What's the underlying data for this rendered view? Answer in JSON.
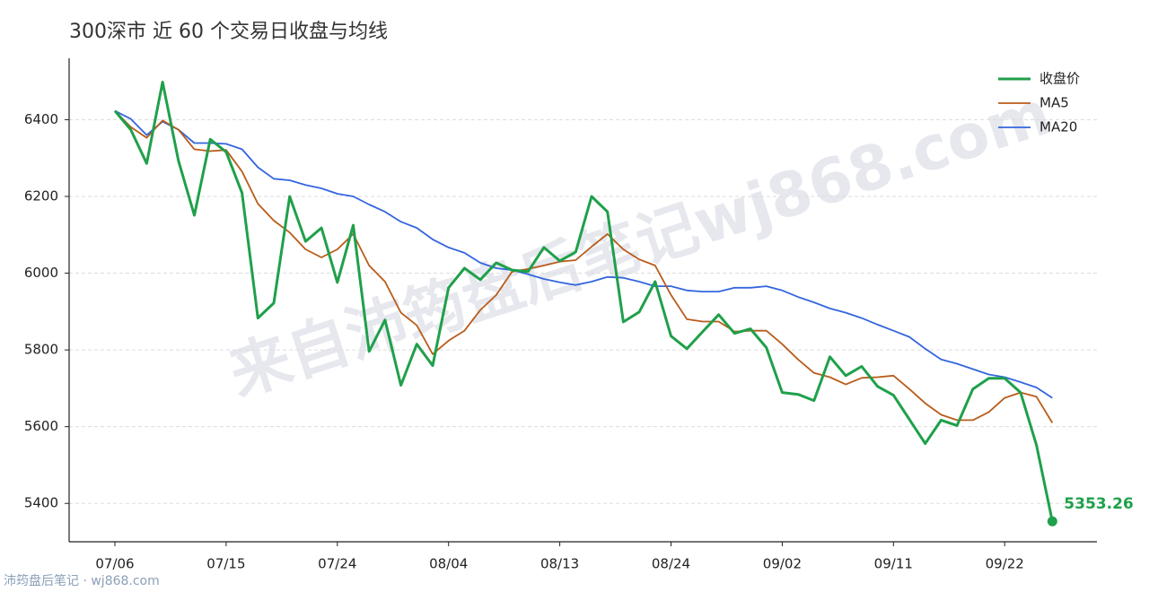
{
  "chart_data": {
    "type": "line",
    "title": "300深市 近 60 个交易日收盘与均线",
    "watermark": "来自沛筠盘后笔记wj868.com",
    "footer": "沛筠盘后笔记 · wj868.com",
    "categories": [
      "07/06",
      null,
      null,
      null,
      null,
      null,
      null,
      "07/15",
      null,
      null,
      null,
      null,
      null,
      null,
      "07/24",
      null,
      null,
      null,
      null,
      null,
      null,
      "08/04",
      null,
      null,
      null,
      null,
      null,
      null,
      "08/13",
      null,
      null,
      null,
      null,
      null,
      null,
      "08/24",
      null,
      null,
      null,
      null,
      null,
      null,
      "09/02",
      null,
      null,
      null,
      null,
      null,
      null,
      "09/11",
      null,
      null,
      null,
      null,
      null,
      null,
      "09/22",
      null,
      null,
      null
    ],
    "series": [
      {
        "name": "收盘价",
        "color": "#1fa04a",
        "width": 3,
        "annotate_last": true,
        "values": [
          6423,
          6374,
          6286,
          6498,
          6293,
          6151,
          6349,
          6316,
          6209,
          5883,
          5922,
          6200,
          6083,
          6118,
          5976,
          6125,
          5796,
          5878,
          5708,
          5815,
          5759,
          5962,
          6013,
          5983,
          6027,
          6008,
          6004,
          6067,
          6032,
          6055,
          6200,
          6160,
          5873,
          5899,
          5978,
          5836,
          5803,
          5848,
          5892,
          5843,
          5855,
          5806,
          5689,
          5684,
          5668,
          5782,
          5733,
          5757,
          5705,
          5682,
          5619,
          5556,
          5617,
          5603,
          5698,
          5726,
          5726,
          5689,
          5552,
          5353.26
        ]
      },
      {
        "name": "MA5",
        "color": "#b85c1a",
        "width": 1.8,
        "values": [
          6423,
          6381,
          6353,
          6398,
          6374,
          6323,
          6318,
          6321,
          6265,
          6181,
          6137,
          6106,
          6062,
          6041,
          6062,
          6102,
          6020,
          5978,
          5897,
          5864,
          5789,
          5824,
          5850,
          5904,
          5943,
          6004,
          6011,
          6020,
          6030,
          6034,
          6069,
          6102,
          6062,
          6036,
          6020,
          5943,
          5880,
          5874,
          5874,
          5848,
          5850,
          5850,
          5815,
          5775,
          5740,
          5729,
          5710,
          5727,
          5729,
          5733,
          5698,
          5661,
          5631,
          5617,
          5617,
          5638,
          5675,
          5689,
          5678,
          5610
        ]
      },
      {
        "name": "MA20",
        "color": "#3366dd",
        "width": 1.8,
        "values": [
          6423,
          6402,
          6360,
          6395,
          6374,
          6339,
          6339,
          6337,
          6323,
          6276,
          6246,
          6242,
          6230,
          6221,
          6207,
          6200,
          6179,
          6160,
          6134,
          6118,
          6088,
          6067,
          6053,
          6027,
          6013,
          6008,
          5997,
          5985,
          5976,
          5969,
          5978,
          5990,
          5988,
          5978,
          5966,
          5966,
          5955,
          5952,
          5952,
          5962,
          5962,
          5966,
          5955,
          5938,
          5924,
          5908,
          5897,
          5883,
          5866,
          5850,
          5834,
          5803,
          5775,
          5764,
          5750,
          5736,
          5729,
          5716,
          5702,
          5675
        ]
      }
    ],
    "ylim": [
      5300,
      6560
    ],
    "yticks": [
      5400,
      5600,
      5800,
      6000,
      6200,
      6400
    ],
    "grid": true,
    "legend": "upper right"
  }
}
